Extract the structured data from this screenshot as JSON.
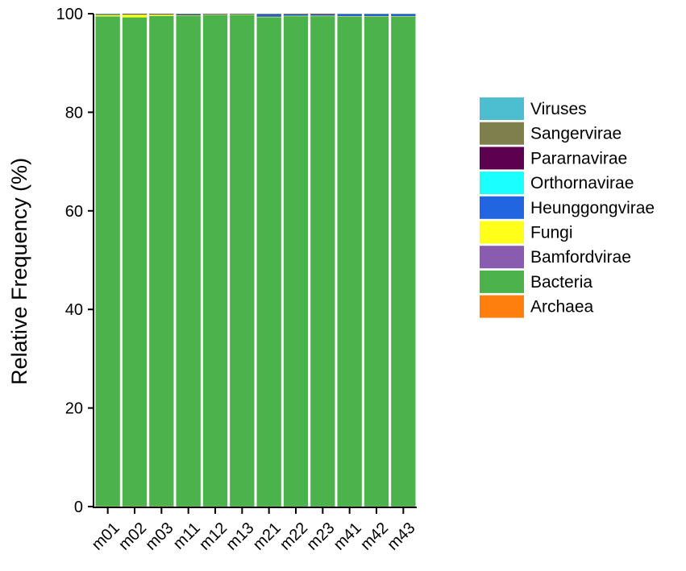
{
  "chart_data": {
    "type": "bar",
    "stacked": true,
    "title": "",
    "xlabel": "",
    "ylabel": "Relative Frequency (%)",
    "ylim": [
      0,
      100
    ],
    "yticks": [
      0,
      20,
      40,
      60,
      80,
      100
    ],
    "legend_position": "right",
    "grid": false,
    "categories": [
      "m01",
      "m02",
      "m03",
      "m11",
      "m12",
      "m13",
      "m21",
      "m22",
      "m23",
      "m41",
      "m42",
      "m43"
    ],
    "series": [
      {
        "name": "Archaea",
        "color": "#FF7F0E",
        "values": [
          0.05,
          0.05,
          0.05,
          0.02,
          0.02,
          0.02,
          0.02,
          0.02,
          0.02,
          0.02,
          0.02,
          0.02
        ]
      },
      {
        "name": "Bacteria",
        "color": "#4CB34C",
        "values": [
          99.4,
          99.2,
          99.5,
          99.6,
          99.7,
          99.75,
          99.3,
          99.5,
          99.5,
          99.4,
          99.4,
          99.4
        ]
      },
      {
        "name": "Bamfordvirae",
        "color": "#8A5CB0",
        "values": [
          0,
          0,
          0,
          0,
          0,
          0,
          0,
          0,
          0,
          0,
          0,
          0
        ]
      },
      {
        "name": "Fungi",
        "color": "#FFFF1A",
        "values": [
          0.35,
          0.6,
          0.3,
          0.05,
          0.05,
          0.03,
          0.05,
          0.05,
          0.05,
          0.05,
          0.05,
          0.05
        ]
      },
      {
        "name": "Heunggongvirae",
        "color": "#2166E0",
        "values": [
          0.05,
          0.05,
          0.05,
          0.1,
          0.1,
          0.1,
          0.4,
          0.3,
          0.25,
          0.4,
          0.4,
          0.4
        ]
      },
      {
        "name": "Orthornavirae",
        "color": "#1AFFFF",
        "values": [
          0,
          0,
          0,
          0,
          0,
          0,
          0,
          0,
          0,
          0,
          0,
          0
        ]
      },
      {
        "name": "Pararnavirae",
        "color": "#5E004F",
        "values": [
          0.05,
          0.05,
          0.05,
          0.15,
          0.1,
          0.08,
          0.15,
          0.1,
          0.15,
          0.05,
          0.05,
          0.05
        ]
      },
      {
        "name": "Sangervirae",
        "color": "#7F7F4E",
        "values": [
          0.05,
          0.05,
          0.05,
          0.05,
          0.03,
          0.02,
          0.05,
          0.03,
          0.03,
          0.05,
          0.05,
          0.05
        ]
      },
      {
        "name": "Viruses",
        "color": "#4DBECF",
        "values": [
          0.05,
          0.0,
          0.0,
          0.03,
          0.0,
          0.0,
          0.03,
          0.0,
          0.0,
          0.03,
          0.03,
          0.03
        ]
      }
    ],
    "legend_order": [
      "Viruses",
      "Sangervirae",
      "Pararnavirae",
      "Orthornavirae",
      "Heunggongvirae",
      "Fungi",
      "Bamfordvirae",
      "Bacteria",
      "Archaea"
    ]
  }
}
